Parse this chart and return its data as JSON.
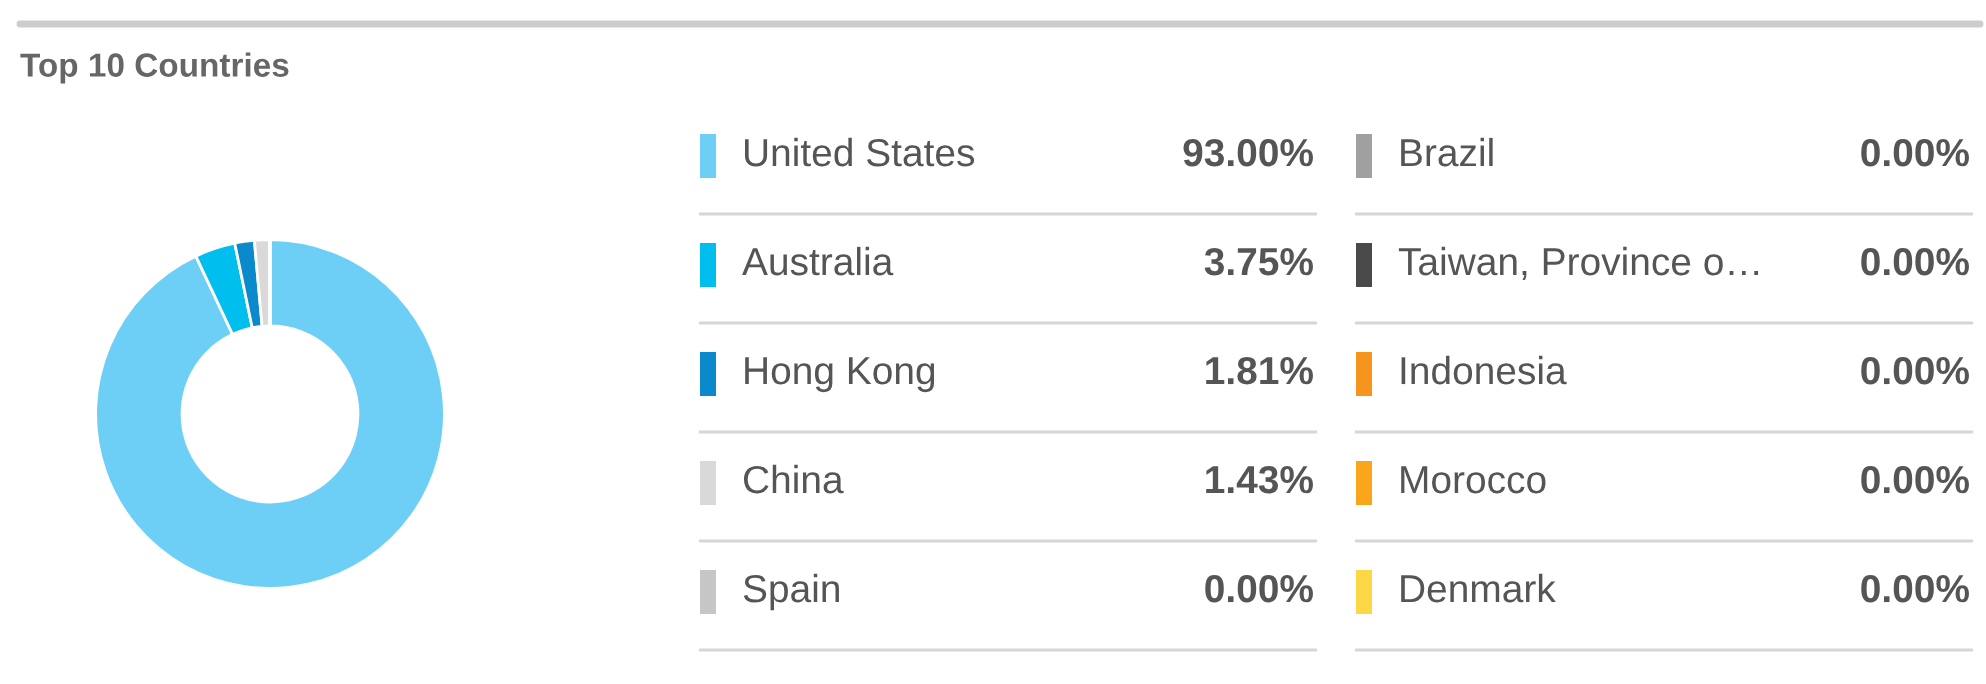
{
  "chart_data": {
    "type": "donut",
    "title": "Top 10 Countries",
    "categories": [
      "United States",
      "Australia",
      "Hong Kong",
      "China",
      "Spain",
      "Brazil",
      "Taiwan, Province o…",
      "Indonesia",
      "Morocco",
      "Denmark"
    ],
    "values": [
      93.0,
      3.75,
      1.81,
      1.43,
      0.0,
      0.0,
      0.0,
      0.0,
      0.0,
      0.0
    ],
    "value_labels": [
      "93.00%",
      "3.75%",
      "1.81%",
      "1.43%",
      "0.00%",
      "0.00%",
      "0.00%",
      "0.00%",
      "0.00%",
      "0.00%"
    ],
    "colors": [
      "#6dcff6",
      "#00bfef",
      "#0a8acb",
      "#d9d9d9",
      "#c6c6c6",
      "#a0a0a0",
      "#4a4a4a",
      "#f7941d",
      "#f9a61a",
      "#fcd846"
    ],
    "legend": "right"
  }
}
